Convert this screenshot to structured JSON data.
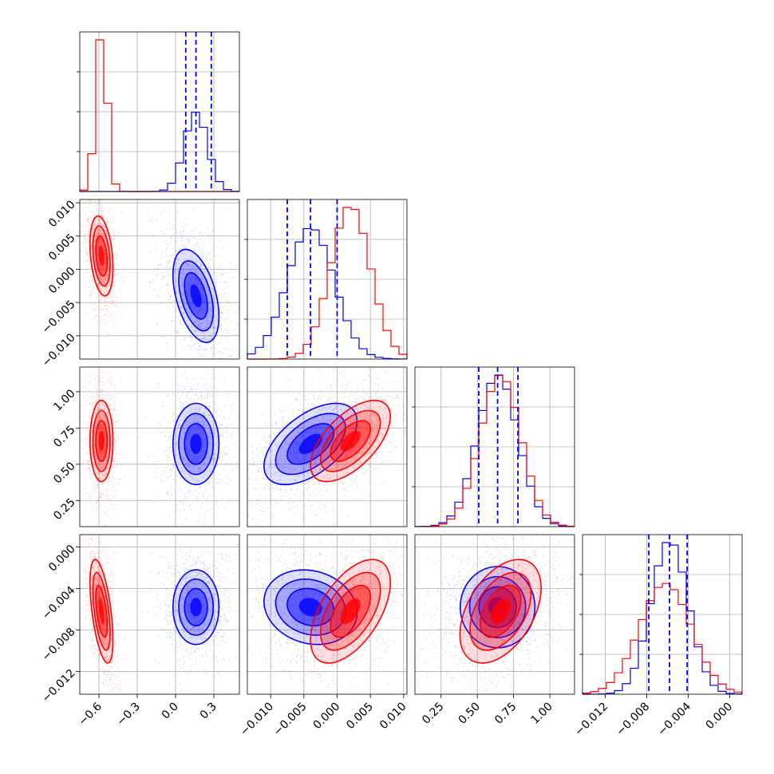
{
  "chart_data": {
    "type": "corner",
    "grid": true,
    "colors": {
      "series_a": "#0000ff",
      "series_b": "#ff0000",
      "frame": "#000000",
      "grid": "#b0b0b0"
    },
    "series": [
      {
        "color": "#0000ff",
        "params": [
          {
            "median": 0.16,
            "q16": 0.08,
            "q84": 0.28,
            "sd": 0.09
          },
          {
            "median": -0.004,
            "q16": -0.0075,
            "q84": 0.0,
            "sd": 0.0035
          },
          {
            "median": 0.64,
            "q16": 0.51,
            "q84": 0.78,
            "sd": 0.14
          },
          {
            "median": -0.0058,
            "q16": -0.0078,
            "q84": -0.0041,
            "sd": 0.0018
          }
        ],
        "correlations": [
          [
            0,
            1,
            -0.45
          ],
          [
            0,
            2,
            0.0
          ],
          [
            0,
            3,
            0.0
          ],
          [
            1,
            2,
            0.55
          ],
          [
            1,
            3,
            -0.15
          ],
          [
            2,
            3,
            0.0
          ]
        ]
      },
      {
        "color": "#ff0000",
        "params": [
          {
            "median": -0.58,
            "sd": 0.045
          },
          {
            "median": 0.002,
            "sd": 0.003
          },
          {
            "median": 0.66,
            "sd": 0.14
          },
          {
            "median": -0.0062,
            "sd": 0.0025
          }
        ],
        "correlations": [
          [
            0,
            1,
            -0.3
          ],
          [
            0,
            2,
            0.0
          ],
          [
            0,
            3,
            -0.55
          ],
          [
            1,
            2,
            0.6
          ],
          [
            1,
            3,
            0.55
          ],
          [
            2,
            3,
            0.45
          ]
        ]
      }
    ],
    "axes": [
      {
        "range": [
          -0.75,
          0.5
        ],
        "ticks": [
          -0.6,
          -0.3,
          0.0,
          0.3
        ],
        "tick_labels": [
          "−0.6",
          "−0.3",
          "0.0",
          "0.3"
        ]
      },
      {
        "range": [
          -0.0135,
          0.0105
        ],
        "ticks": [
          -0.01,
          -0.005,
          0.0,
          0.005,
          0.01
        ],
        "tick_labels": [
          "−0.010",
          "−0.005",
          "0.000",
          "0.005",
          "0.010"
        ]
      },
      {
        "range": [
          0.07,
          1.17
        ],
        "ticks": [
          0.25,
          0.5,
          0.75,
          1.0
        ],
        "tick_labels": [
          "0.25",
          "0.50",
          "0.75",
          "1.00"
        ]
      },
      {
        "range": [
          -0.0142,
          0.0012
        ],
        "ticks": [
          -0.012,
          -0.008,
          -0.004,
          0.0
        ],
        "tick_labels": [
          "−0.012",
          "−0.008",
          "−0.004",
          "0.000"
        ]
      }
    ]
  }
}
